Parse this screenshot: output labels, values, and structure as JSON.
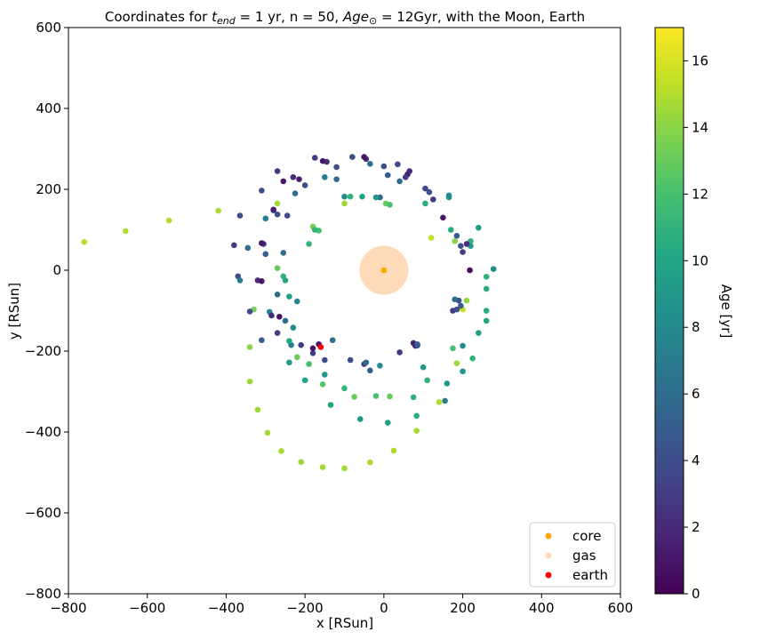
{
  "chart_data": {
    "type": "scatter",
    "title": {
      "prefix": "Coordinates for ",
      "t_sym": "t",
      "t_sub": "end",
      "mid1": " = 1 yr, n = 50, ",
      "age_sym": "Age",
      "age_sub": "⊙",
      "suffix": " = 12Gyr, with the Moon, Earth"
    },
    "xlabel": "x [RSun]",
    "ylabel": "y [RSun]",
    "xlim": [
      -800,
      600
    ],
    "ylim": [
      -800,
      600
    ],
    "xticks": [
      -800,
      -600,
      -400,
      -200,
      0,
      200,
      400,
      600
    ],
    "yticks": [
      -800,
      -600,
      -400,
      -200,
      0,
      200,
      400,
      600
    ],
    "xtick_labels": [
      "−800",
      "−600",
      "−400",
      "−200",
      "0",
      "200",
      "400",
      "600"
    ],
    "ytick_labels": [
      "−800",
      "−600",
      "−400",
      "−200",
      "0",
      "200",
      "400",
      "600"
    ],
    "grid": false,
    "legend": {
      "position": "lower-right",
      "entries": [
        {
          "label": "core",
          "color": "#ffa500"
        },
        {
          "label": "gas",
          "color": "#ffdab9"
        },
        {
          "label": "earth",
          "color": "#ff0000"
        }
      ]
    },
    "colorbar": {
      "label": "Age [yr]",
      "range": [
        0,
        17
      ],
      "ticks": [
        0,
        2,
        4,
        6,
        8,
        10,
        12,
        14,
        16
      ],
      "tick_labels": [
        "0",
        "2",
        "4",
        "6",
        "8",
        "10",
        "12",
        "14",
        "16"
      ],
      "colormap": "viridis"
    },
    "core": {
      "x": 0,
      "y": 0
    },
    "gas": {
      "center_x": 0,
      "center_y": 0,
      "radius": 62
    },
    "earth": {
      "x": -160,
      "y": -190
    },
    "series": [
      {
        "name": "particles",
        "points": [
          [
            -760,
            70,
            15.2
          ],
          [
            -655,
            97,
            15.1
          ],
          [
            -545,
            123,
            15
          ],
          [
            -420,
            147,
            14.9
          ],
          [
            -270,
            165,
            14.7
          ],
          [
            -100,
            165,
            14.5
          ],
          [
            -180,
            108,
            13.5
          ],
          [
            -190,
            65,
            11
          ],
          [
            -330,
            -97,
            13.5
          ],
          [
            -340,
            -190,
            14
          ],
          [
            -340,
            -275,
            14.5
          ],
          [
            -320,
            -345,
            14.5
          ],
          [
            -295,
            -402,
            14.7
          ],
          [
            -260,
            -447,
            14.7
          ],
          [
            -210,
            -474,
            14.5
          ],
          [
            -155,
            -487,
            14.6
          ],
          [
            -100,
            -490,
            14.6
          ],
          [
            -35,
            -475,
            14.8
          ],
          [
            25,
            -446,
            14.9
          ],
          [
            83,
            -397,
            14.7
          ],
          [
            140,
            -326,
            15
          ],
          [
            185,
            -230,
            14.5
          ],
          [
            200,
            -97,
            15.5
          ],
          [
            210,
            -75,
            14.2
          ],
          [
            180,
            72,
            14
          ],
          [
            120,
            80,
            15.5
          ],
          [
            5,
            165,
            13
          ],
          [
            -220,
            -215,
            13
          ],
          [
            -190,
            -232,
            12
          ],
          [
            -155,
            -282,
            12.5
          ],
          [
            -100,
            -292,
            11
          ],
          [
            -75,
            -313,
            13
          ],
          [
            -20,
            -311,
            12
          ],
          [
            15,
            -312,
            13
          ],
          [
            75,
            -314,
            11
          ],
          [
            83,
            -360,
            10.5
          ],
          [
            10,
            -377,
            9.5
          ],
          [
            -60,
            -368,
            9
          ],
          [
            -135,
            -333,
            10
          ],
          [
            -200,
            -272,
            10
          ],
          [
            -240,
            -228,
            9
          ],
          [
            -290,
            -103,
            8
          ],
          [
            -220,
            -77,
            8
          ],
          [
            -240,
            -65,
            9.5
          ],
          [
            -270,
            -60,
            6
          ],
          [
            -250,
            -25,
            10
          ],
          [
            -270,
            5,
            13
          ],
          [
            -255,
            -15,
            11
          ],
          [
            -235,
            -185,
            7
          ],
          [
            -230,
            -142,
            8
          ],
          [
            -240,
            -175,
            10
          ],
          [
            -180,
            -205,
            3
          ],
          [
            -150,
            -222,
            4
          ],
          [
            -150,
            -258,
            9
          ],
          [
            -130,
            -173,
            6.5
          ],
          [
            -85,
            -222,
            4
          ],
          [
            -50,
            -232,
            3
          ],
          [
            -35,
            -248,
            5
          ],
          [
            -10,
            -236,
            8
          ],
          [
            -45,
            -228,
            6
          ],
          [
            40,
            -203,
            3
          ],
          [
            80,
            -187,
            2
          ],
          [
            85,
            -186,
            3.5
          ],
          [
            75,
            -180,
            1.5
          ],
          [
            100,
            -240,
            9
          ],
          [
            110,
            -272,
            11
          ],
          [
            160,
            -280,
            9
          ],
          [
            155,
            -323,
            7
          ],
          [
            200,
            -250,
            9
          ],
          [
            200,
            -187,
            8
          ],
          [
            225,
            -218,
            11
          ],
          [
            175,
            -193,
            12
          ],
          [
            240,
            -155,
            9.5
          ],
          [
            260,
            -125,
            10
          ],
          [
            260,
            -100,
            10.5
          ],
          [
            260,
            -46,
            10.5
          ],
          [
            260,
            -16,
            11
          ],
          [
            278,
            3,
            8
          ],
          [
            218,
            0,
            0.5
          ],
          [
            175,
            -100,
            3
          ],
          [
            185,
            -97,
            4
          ],
          [
            195,
            -88,
            5
          ],
          [
            190,
            -75,
            4
          ],
          [
            180,
            -72,
            6
          ],
          [
            220,
            60,
            9
          ],
          [
            220,
            72,
            11
          ],
          [
            200,
            45,
            3
          ],
          [
            210,
            65,
            2
          ],
          [
            195,
            60,
            4
          ],
          [
            185,
            85,
            5
          ],
          [
            170,
            100,
            10.5
          ],
          [
            165,
            180,
            9
          ],
          [
            165,
            185,
            8
          ],
          [
            150,
            130,
            1
          ],
          [
            125,
            175,
            3
          ],
          [
            115,
            193,
            4
          ],
          [
            105,
            165,
            10.5
          ],
          [
            105,
            202,
            3.5
          ],
          [
            240,
            105,
            9
          ],
          [
            60,
            237,
            1
          ],
          [
            65,
            245,
            2
          ],
          [
            55,
            230,
            3
          ],
          [
            35,
            262,
            3.5
          ],
          [
            0,
            257,
            4
          ],
          [
            -35,
            263,
            6
          ],
          [
            -45,
            275,
            2
          ],
          [
            -50,
            280,
            0.8
          ],
          [
            -80,
            280,
            4
          ],
          [
            -100,
            182,
            8
          ],
          [
            -120,
            255,
            4
          ],
          [
            -145,
            268,
            2
          ],
          [
            -155,
            270,
            1
          ],
          [
            -175,
            278,
            3
          ],
          [
            -120,
            225,
            6
          ],
          [
            -150,
            230,
            7
          ],
          [
            -200,
            210,
            4
          ],
          [
            -225,
            190,
            6
          ],
          [
            -215,
            225,
            1.5
          ],
          [
            -230,
            230,
            2
          ],
          [
            -255,
            220,
            1
          ],
          [
            -270,
            245,
            3
          ],
          [
            -280,
            148,
            5
          ],
          [
            -280,
            150,
            1.5
          ],
          [
            -270,
            138,
            4
          ],
          [
            -245,
            135,
            4
          ],
          [
            -300,
            128,
            7
          ],
          [
            -310,
            197,
            4
          ],
          [
            -365,
            135,
            4
          ],
          [
            -305,
            65,
            3
          ],
          [
            -310,
            67,
            1
          ],
          [
            -300,
            40,
            5
          ],
          [
            -255,
            43,
            6
          ],
          [
            -345,
            55,
            6
          ],
          [
            -380,
            62,
            3
          ],
          [
            -370,
            -15,
            4
          ],
          [
            -365,
            -25,
            7
          ],
          [
            -340,
            -102,
            4
          ],
          [
            -320,
            -25,
            2
          ],
          [
            -310,
            -27,
            1
          ],
          [
            -285,
            -112,
            2
          ],
          [
            -265,
            -115,
            1
          ],
          [
            -270,
            -155,
            3
          ],
          [
            -310,
            -173,
            5
          ],
          [
            -250,
            -125,
            6
          ],
          [
            -210,
            -185,
            3
          ],
          [
            -180,
            -193,
            1
          ],
          [
            -165,
            -183,
            1
          ],
          [
            -165,
            98,
            12
          ],
          [
            -175,
            100,
            11
          ],
          [
            -10,
            180,
            6
          ],
          [
            -85,
            182,
            11
          ],
          [
            -55,
            182,
            10
          ],
          [
            -20,
            180,
            9
          ],
          [
            40,
            220,
            6
          ],
          [
            10,
            235,
            5
          ],
          [
            15,
            162,
            12
          ],
          [
            85,
            -183,
            5
          ]
        ]
      }
    ]
  }
}
